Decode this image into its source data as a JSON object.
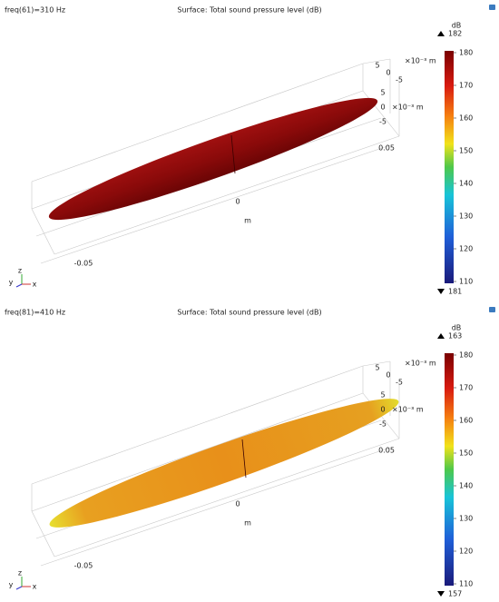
{
  "panels": [
    {
      "label": "freq(61)=310 Hz",
      "title": "Surface: Total sound pressure level (dB)",
      "unit": "dB",
      "max_label": "182",
      "min_label": "181",
      "colorbar_ticks": [
        180,
        170,
        160,
        150,
        140,
        130,
        120,
        110
      ],
      "z_ticks": [
        "5",
        "0",
        "-5"
      ],
      "z_unit": "×10⁻³ m",
      "y_ticks": [
        "5",
        "0",
        "-5"
      ],
      "y_unit": "×10⁻³ m",
      "x_ticks": [
        "0.05",
        "0",
        "-0.05"
      ],
      "x_unit": "m",
      "triad": [
        "y",
        "z",
        "x"
      ]
    },
    {
      "label": "freq(81)=410 Hz",
      "title": "Surface: Total sound pressure level (dB)",
      "unit": "dB",
      "max_label": "163",
      "min_label": "157",
      "colorbar_ticks": [
        180,
        170,
        160,
        150,
        140,
        130,
        120,
        110
      ],
      "z_ticks": [
        "5",
        "0",
        "-5"
      ],
      "z_unit": "×10⁻³ m",
      "y_ticks": [
        "5",
        "0",
        "-5"
      ],
      "y_unit": "×10⁻³ m",
      "x_ticks": [
        "0.05",
        "0",
        "-0.05"
      ],
      "x_unit": "m",
      "triad": [
        "y",
        "z",
        "x"
      ]
    }
  ]
}
